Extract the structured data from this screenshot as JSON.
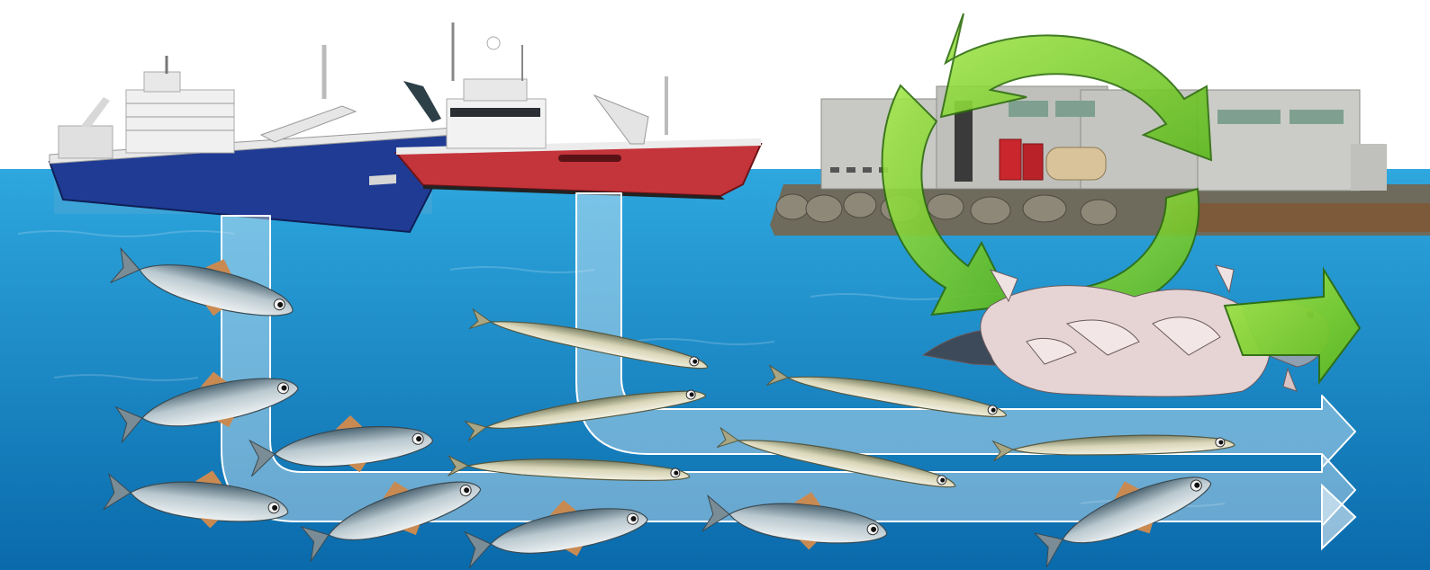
{
  "scene": {
    "description_colors": {
      "sky": "#ffffff",
      "sea_top": "#2aa3dc",
      "sea_bottom": "#0b6fb0",
      "boat_blue_hull": "#1e3c96",
      "boat_red_hull": "#c8333a",
      "recycle_green": "#7cd12c",
      "arrow_flow": "#d8ecf7"
    },
    "icons": [
      "blue-trawler",
      "red-trawler",
      "processing-plant",
      "recycle-arrows-icon",
      "fish-waste-pile",
      "herring",
      "sandeel",
      "flow-arrow"
    ]
  }
}
